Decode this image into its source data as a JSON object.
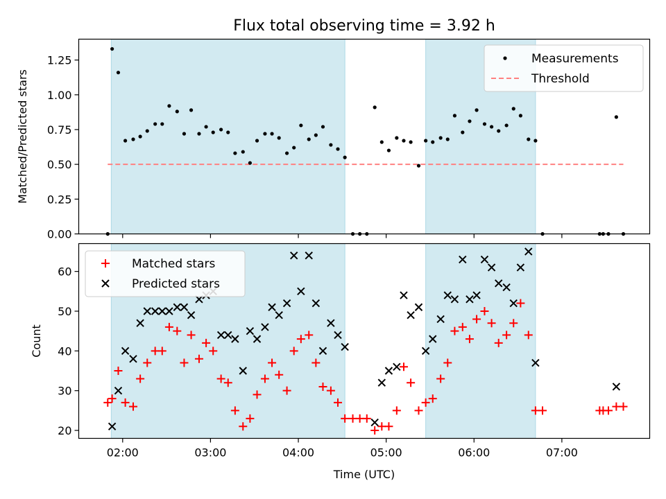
{
  "chart_data": {
    "title": "Flux total observing time = 3.92 h",
    "xlabel": "Time (UTC)",
    "x_ticks": [
      "02:00",
      "03:00",
      "04:00",
      "05:00",
      "06:00",
      "07:00"
    ],
    "x_range_hours": [
      1.5,
      8.0
    ],
    "shaded_intervals": [
      [
        1.87,
        4.53
      ],
      [
        5.45,
        6.7
      ]
    ],
    "colors": {
      "shade": "#add8e6",
      "measurement": "#000000",
      "threshold": "#ff8080",
      "matched": "#ff0000",
      "predicted": "#000000"
    },
    "panels": [
      {
        "type": "scatter",
        "ylabel": "Matched/Predicted stars",
        "ylim": [
          0,
          1.4
        ],
        "y_ticks": [
          "0.00",
          "0.25",
          "0.50",
          "0.75",
          "1.00",
          "1.25"
        ],
        "legend_position": "top-right",
        "threshold": {
          "name": "Threshold",
          "value": 0.5,
          "x_range": [
            1.83,
            7.7
          ]
        },
        "series": [
          {
            "name": "Measurements",
            "points": [
              [
                1.83,
                0.0
              ],
              [
                1.88,
                1.33
              ],
              [
                1.95,
                1.16
              ],
              [
                2.03,
                0.67
              ],
              [
                2.12,
                0.68
              ],
              [
                2.2,
                0.7
              ],
              [
                2.28,
                0.74
              ],
              [
                2.37,
                0.79
              ],
              [
                2.45,
                0.79
              ],
              [
                2.53,
                0.92
              ],
              [
                2.62,
                0.88
              ],
              [
                2.7,
                0.72
              ],
              [
                2.78,
                0.89
              ],
              [
                2.87,
                0.72
              ],
              [
                2.95,
                0.77
              ],
              [
                3.03,
                0.73
              ],
              [
                3.12,
                0.75
              ],
              [
                3.2,
                0.73
              ],
              [
                3.28,
                0.58
              ],
              [
                3.37,
                0.59
              ],
              [
                3.45,
                0.51
              ],
              [
                3.53,
                0.67
              ],
              [
                3.62,
                0.72
              ],
              [
                3.7,
                0.72
              ],
              [
                3.78,
                0.69
              ],
              [
                3.87,
                0.58
              ],
              [
                3.95,
                0.62
              ],
              [
                4.03,
                0.78
              ],
              [
                4.12,
                0.68
              ],
              [
                4.2,
                0.71
              ],
              [
                4.28,
                0.77
              ],
              [
                4.37,
                0.64
              ],
              [
                4.45,
                0.61
              ],
              [
                4.53,
                0.55
              ],
              [
                4.62,
                0.0
              ],
              [
                4.7,
                0.0
              ],
              [
                4.78,
                0.0
              ],
              [
                4.87,
                0.91
              ],
              [
                4.95,
                0.66
              ],
              [
                5.03,
                0.6
              ],
              [
                5.12,
                0.69
              ],
              [
                5.2,
                0.67
              ],
              [
                5.28,
                0.66
              ],
              [
                5.37,
                0.49
              ],
              [
                5.45,
                0.67
              ],
              [
                5.53,
                0.66
              ],
              [
                5.62,
                0.69
              ],
              [
                5.7,
                0.68
              ],
              [
                5.78,
                0.85
              ],
              [
                5.87,
                0.73
              ],
              [
                5.95,
                0.81
              ],
              [
                6.03,
                0.89
              ],
              [
                6.12,
                0.79
              ],
              [
                6.2,
                0.77
              ],
              [
                6.28,
                0.74
              ],
              [
                6.37,
                0.78
              ],
              [
                6.45,
                0.9
              ],
              [
                6.53,
                0.85
              ],
              [
                6.62,
                0.68
              ],
              [
                6.7,
                0.67
              ],
              [
                6.78,
                0.0
              ],
              [
                7.43,
                0.0
              ],
              [
                7.47,
                0.0
              ],
              [
                7.53,
                0.0
              ],
              [
                7.62,
                0.84
              ],
              [
                7.7,
                0.0
              ]
            ]
          }
        ]
      },
      {
        "type": "scatter",
        "ylabel": "Count",
        "ylim": [
          18,
          67
        ],
        "y_ticks": [
          "20",
          "30",
          "40",
          "50",
          "60"
        ],
        "legend_position": "top-left",
        "series": [
          {
            "name": "Matched stars",
            "marker": "plus",
            "points": [
              [
                1.83,
                27
              ],
              [
                1.88,
                28
              ],
              [
                1.95,
                35
              ],
              [
                2.03,
                27
              ],
              [
                2.12,
                26
              ],
              [
                2.2,
                33
              ],
              [
                2.28,
                37
              ],
              [
                2.37,
                40
              ],
              [
                2.45,
                40
              ],
              [
                2.53,
                46
              ],
              [
                2.62,
                45
              ],
              [
                2.7,
                37
              ],
              [
                2.78,
                44
              ],
              [
                2.87,
                38
              ],
              [
                2.95,
                42
              ],
              [
                3.03,
                40
              ],
              [
                3.12,
                33
              ],
              [
                3.2,
                32
              ],
              [
                3.28,
                25
              ],
              [
                3.37,
                21
              ],
              [
                3.45,
                23
              ],
              [
                3.53,
                29
              ],
              [
                3.62,
                33
              ],
              [
                3.7,
                37
              ],
              [
                3.78,
                34
              ],
              [
                3.87,
                30
              ],
              [
                3.95,
                40
              ],
              [
                4.03,
                43
              ],
              [
                4.12,
                44
              ],
              [
                4.2,
                37
              ],
              [
                4.28,
                31
              ],
              [
                4.37,
                30
              ],
              [
                4.45,
                27
              ],
              [
                4.53,
                23
              ],
              [
                4.62,
                23
              ],
              [
                4.7,
                23
              ],
              [
                4.78,
                23
              ],
              [
                4.87,
                20
              ],
              [
                4.95,
                21
              ],
              [
                5.03,
                21
              ],
              [
                5.12,
                25
              ],
              [
                5.2,
                36
              ],
              [
                5.28,
                32
              ],
              [
                5.37,
                25
              ],
              [
                5.45,
                27
              ],
              [
                5.53,
                28
              ],
              [
                5.62,
                33
              ],
              [
                5.7,
                37
              ],
              [
                5.78,
                45
              ],
              [
                5.87,
                46
              ],
              [
                5.95,
                43
              ],
              [
                6.03,
                48
              ],
              [
                6.12,
                50
              ],
              [
                6.2,
                47
              ],
              [
                6.28,
                42
              ],
              [
                6.37,
                44
              ],
              [
                6.45,
                47
              ],
              [
                6.53,
                52
              ],
              [
                6.62,
                44
              ],
              [
                6.7,
                25
              ],
              [
                6.78,
                25
              ],
              [
                7.43,
                25
              ],
              [
                7.47,
                25
              ],
              [
                7.53,
                25
              ],
              [
                7.62,
                26
              ],
              [
                7.7,
                26
              ]
            ]
          },
          {
            "name": "Predicted stars",
            "marker": "x",
            "points": [
              [
                1.88,
                21
              ],
              [
                1.95,
                30
              ],
              [
                2.03,
                40
              ],
              [
                2.12,
                38
              ],
              [
                2.2,
                47
              ],
              [
                2.28,
                50
              ],
              [
                2.37,
                50
              ],
              [
                2.45,
                50
              ],
              [
                2.53,
                50
              ],
              [
                2.62,
                51
              ],
              [
                2.7,
                51
              ],
              [
                2.78,
                49
              ],
              [
                2.87,
                53
              ],
              [
                2.95,
                54
              ],
              [
                3.03,
                55
              ],
              [
                3.12,
                44
              ],
              [
                3.2,
                44
              ],
              [
                3.28,
                43
              ],
              [
                3.37,
                35
              ],
              [
                3.45,
                45
              ],
              [
                3.53,
                43
              ],
              [
                3.62,
                46
              ],
              [
                3.7,
                51
              ],
              [
                3.78,
                49
              ],
              [
                3.87,
                52
              ],
              [
                3.95,
                64
              ],
              [
                4.03,
                55
              ],
              [
                4.12,
                64
              ],
              [
                4.2,
                52
              ],
              [
                4.28,
                40
              ],
              [
                4.37,
                47
              ],
              [
                4.45,
                44
              ],
              [
                4.53,
                41
              ],
              [
                4.87,
                22
              ],
              [
                4.95,
                32
              ],
              [
                5.03,
                35
              ],
              [
                5.12,
                36
              ],
              [
                5.2,
                54
              ],
              [
                5.28,
                49
              ],
              [
                5.37,
                51
              ],
              [
                5.45,
                40
              ],
              [
                5.53,
                43
              ],
              [
                5.62,
                48
              ],
              [
                5.7,
                54
              ],
              [
                5.78,
                53
              ],
              [
                5.87,
                63
              ],
              [
                5.95,
                53
              ],
              [
                6.03,
                54
              ],
              [
                6.12,
                63
              ],
              [
                6.2,
                61
              ],
              [
                6.28,
                57
              ],
              [
                6.37,
                56
              ],
              [
                6.45,
                52
              ],
              [
                6.53,
                61
              ],
              [
                6.62,
                65
              ],
              [
                6.7,
                37
              ],
              [
                7.62,
                31
              ]
            ]
          }
        ]
      }
    ]
  }
}
